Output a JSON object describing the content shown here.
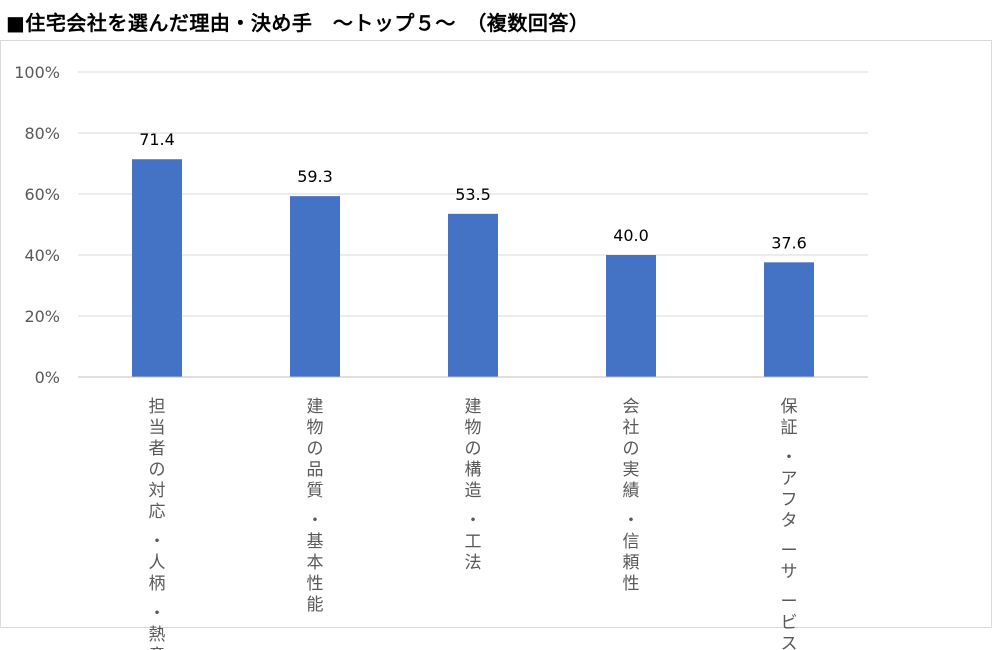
{
  "title": "■住宅会社を選んだ理由・決め手　～トップ５～　（複数回答）",
  "chart_data": {
    "type": "bar",
    "title": "■住宅会社を選んだ理由・決め手　～トップ５～　（複数回答）",
    "categories": [
      "担当者の対応・人柄・熱意",
      "建物の品質・基本性能",
      "建物の構造・工法",
      "会社の実績・信頼性",
      "保証・アフターサービス"
    ],
    "category_lines": [
      [
        "担当者の対応",
        "・人柄",
        "・熱意"
      ],
      [
        "建物の品質",
        "・基本性能"
      ],
      [
        "建物の構造",
        "・工法"
      ],
      [
        "会社の実績",
        "・信頼性"
      ],
      [
        "保証",
        "・アフタ",
        "ーサ",
        "ービス"
      ]
    ],
    "values": [
      71.4,
      59.3,
      53.5,
      40.0,
      37.6
    ],
    "data_labels": [
      "71.4",
      "59.3",
      "53.5",
      "40.0",
      "37.6"
    ],
    "y_ticks": [
      "0%",
      "20%",
      "40%",
      "60%",
      "80%",
      "100%"
    ],
    "ylim": [
      0,
      100
    ],
    "xlabel": "",
    "ylabel": "",
    "grid": true,
    "legend": "none",
    "bar_color": "#4472C4",
    "grid_color": "#d9d9d9"
  }
}
